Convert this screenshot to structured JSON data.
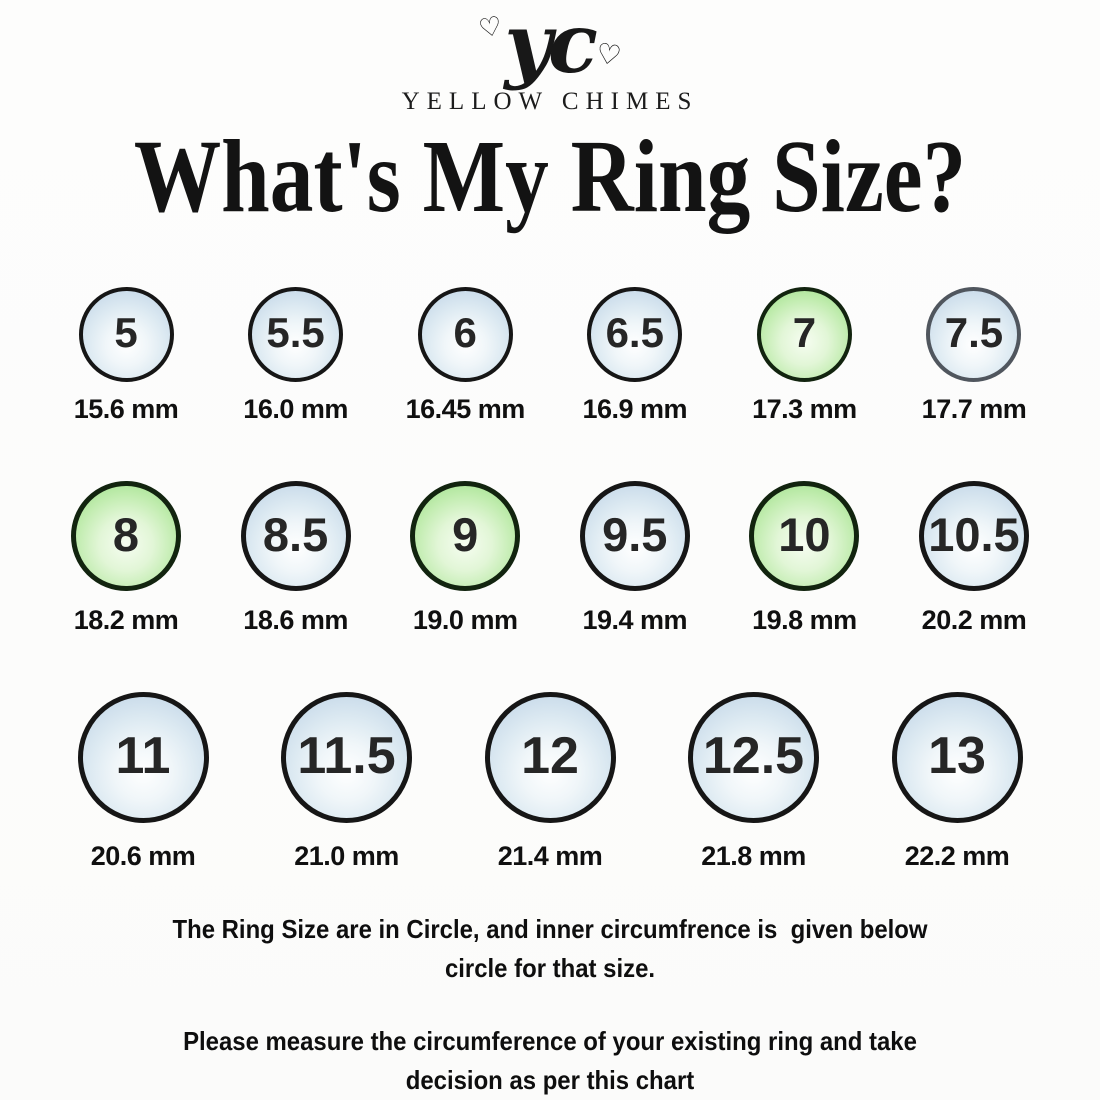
{
  "brand": {
    "logo_text": "yc",
    "name": "YELLOW CHIMES",
    "heart": "♡"
  },
  "title": "What's My Ring Size?",
  "colors": {
    "circle_blue_fill": "#c9dbea",
    "circle_green_fill": "#a5e291",
    "circle_outline": "#161616",
    "text": "#111111",
    "background": "#fdfdfc"
  },
  "chart": {
    "rows": [
      {
        "items": [
          {
            "size": "5",
            "mm": "15.6 mm",
            "variant": "blue"
          },
          {
            "size": "5.5",
            "mm": "16.0 mm",
            "variant": "blue"
          },
          {
            "size": "6",
            "mm": "16.45 mm",
            "variant": "blue"
          },
          {
            "size": "6.5",
            "mm": "16.9 mm",
            "variant": "blue"
          },
          {
            "size": "7",
            "mm": "17.3 mm",
            "variant": "green"
          },
          {
            "size": "7.5",
            "mm": "17.7 mm",
            "variant": "blue-muted"
          }
        ]
      },
      {
        "items": [
          {
            "size": "8",
            "mm": "18.2 mm",
            "variant": "green"
          },
          {
            "size": "8.5",
            "mm": "18.6 mm",
            "variant": "blue"
          },
          {
            "size": "9",
            "mm": "19.0 mm",
            "variant": "green"
          },
          {
            "size": "9.5",
            "mm": "19.4 mm",
            "variant": "blue"
          },
          {
            "size": "10",
            "mm": "19.8 mm",
            "variant": "green"
          },
          {
            "size": "10.5",
            "mm": "20.2 mm",
            "variant": "blue"
          }
        ]
      },
      {
        "items": [
          {
            "size": "11",
            "mm": "20.6 mm",
            "variant": "blue"
          },
          {
            "size": "11.5",
            "mm": "21.0 mm",
            "variant": "blue"
          },
          {
            "size": "12",
            "mm": "21.4 mm",
            "variant": "blue"
          },
          {
            "size": "12.5",
            "mm": "21.8 mm",
            "variant": "blue"
          },
          {
            "size": "13",
            "mm": "22.2 mm",
            "variant": "blue"
          }
        ]
      }
    ]
  },
  "notes": {
    "note1_line1": "The Ring Size are in Circle, and inner circumfrence is  given below",
    "note1_line2": "circle for that size.",
    "note2_line1": "Please measure the circumference of your existing ring and take",
    "note2_line2": "decision as per this chart"
  },
  "chart_data": {
    "type": "table",
    "title": "What's My Ring Size?",
    "columns": [
      "ring_size",
      "inner_diameter_mm"
    ],
    "rows": [
      [
        5,
        15.6
      ],
      [
        5.5,
        16.0
      ],
      [
        6,
        16.45
      ],
      [
        6.5,
        16.9
      ],
      [
        7,
        17.3
      ],
      [
        7.5,
        17.7
      ],
      [
        8,
        18.2
      ],
      [
        8.5,
        18.6
      ],
      [
        9,
        19.0
      ],
      [
        9.5,
        19.4
      ],
      [
        10,
        19.8
      ],
      [
        10.5,
        20.2
      ],
      [
        11,
        20.6
      ],
      [
        11.5,
        21.0
      ],
      [
        12,
        21.4
      ],
      [
        12.5,
        21.8
      ],
      [
        13,
        22.2
      ]
    ],
    "highlighted_green_sizes": [
      7,
      8,
      9,
      10
    ],
    "legend_position": "none",
    "grid": false
  }
}
